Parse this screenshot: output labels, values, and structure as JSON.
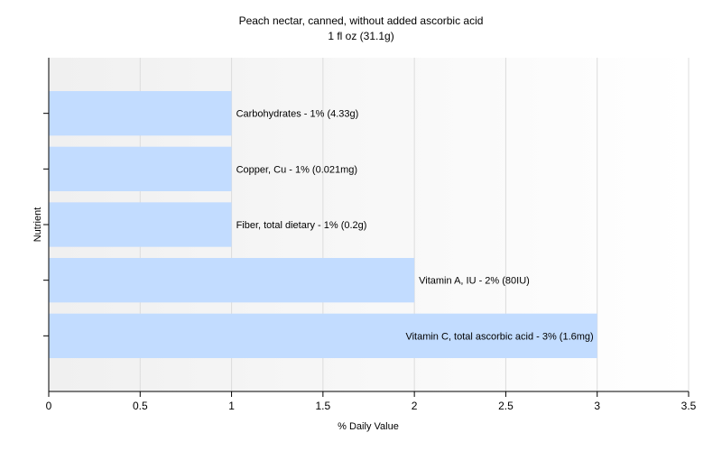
{
  "chart_data": {
    "type": "bar",
    "orientation": "horizontal",
    "title": "Peach nectar, canned, without added ascorbic acid",
    "subtitle": "1 fl oz (31.1g)",
    "xlabel": "% Daily Value",
    "ylabel": "Nutrient",
    "xlim": [
      0,
      3.5
    ],
    "xticks": [
      "0",
      "0.5",
      "1",
      "1.5",
      "2",
      "2.5",
      "3",
      "3.5"
    ],
    "grid": true,
    "categories": [
      "Carbohydrates",
      "Copper, Cu",
      "Fiber, total dietary",
      "Vitamin A, IU",
      "Vitamin C, total ascorbic acid"
    ],
    "values": [
      1,
      1,
      1,
      2,
      3
    ],
    "labels": [
      "Carbohydrates - 1% (4.33g)",
      "Copper, Cu - 1% (0.021mg)",
      "Fiber, total dietary - 1% (0.2g)",
      "Vitamin A, IU - 2% (80IU)",
      "Vitamin C, total ascorbic acid - 3% (1.6mg)"
    ],
    "bar_color": "#c2dcff"
  }
}
